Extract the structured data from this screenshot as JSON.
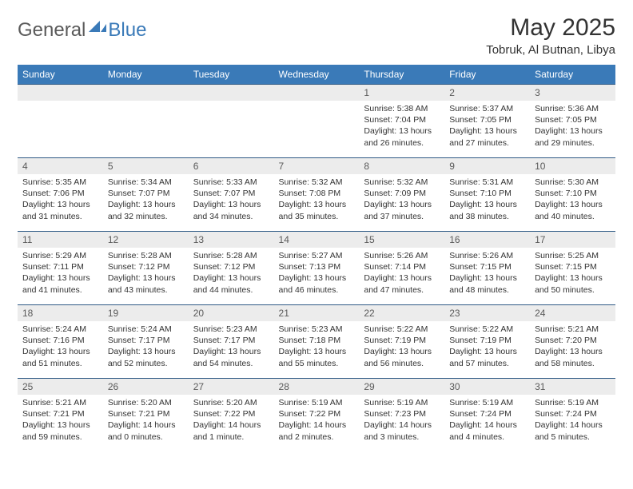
{
  "brand": {
    "part1": "General",
    "part2": "Blue"
  },
  "title": "May 2025",
  "location": "Tobruk, Al Butnan, Libya",
  "colors": {
    "header_bg": "#3a7ab8",
    "header_text": "#ffffff",
    "daynum_bg": "#ececec",
    "row_border": "#2f5a85",
    "text": "#333333"
  },
  "day_names": [
    "Sunday",
    "Monday",
    "Tuesday",
    "Wednesday",
    "Thursday",
    "Friday",
    "Saturday"
  ],
  "weeks": [
    [
      {
        "n": "",
        "sr": "",
        "ss": "",
        "dl": ""
      },
      {
        "n": "",
        "sr": "",
        "ss": "",
        "dl": ""
      },
      {
        "n": "",
        "sr": "",
        "ss": "",
        "dl": ""
      },
      {
        "n": "",
        "sr": "",
        "ss": "",
        "dl": ""
      },
      {
        "n": "1",
        "sr": "Sunrise: 5:38 AM",
        "ss": "Sunset: 7:04 PM",
        "dl": "Daylight: 13 hours and 26 minutes."
      },
      {
        "n": "2",
        "sr": "Sunrise: 5:37 AM",
        "ss": "Sunset: 7:05 PM",
        "dl": "Daylight: 13 hours and 27 minutes."
      },
      {
        "n": "3",
        "sr": "Sunrise: 5:36 AM",
        "ss": "Sunset: 7:05 PM",
        "dl": "Daylight: 13 hours and 29 minutes."
      }
    ],
    [
      {
        "n": "4",
        "sr": "Sunrise: 5:35 AM",
        "ss": "Sunset: 7:06 PM",
        "dl": "Daylight: 13 hours and 31 minutes."
      },
      {
        "n": "5",
        "sr": "Sunrise: 5:34 AM",
        "ss": "Sunset: 7:07 PM",
        "dl": "Daylight: 13 hours and 32 minutes."
      },
      {
        "n": "6",
        "sr": "Sunrise: 5:33 AM",
        "ss": "Sunset: 7:07 PM",
        "dl": "Daylight: 13 hours and 34 minutes."
      },
      {
        "n": "7",
        "sr": "Sunrise: 5:32 AM",
        "ss": "Sunset: 7:08 PM",
        "dl": "Daylight: 13 hours and 35 minutes."
      },
      {
        "n": "8",
        "sr": "Sunrise: 5:32 AM",
        "ss": "Sunset: 7:09 PM",
        "dl": "Daylight: 13 hours and 37 minutes."
      },
      {
        "n": "9",
        "sr": "Sunrise: 5:31 AM",
        "ss": "Sunset: 7:10 PM",
        "dl": "Daylight: 13 hours and 38 minutes."
      },
      {
        "n": "10",
        "sr": "Sunrise: 5:30 AM",
        "ss": "Sunset: 7:10 PM",
        "dl": "Daylight: 13 hours and 40 minutes."
      }
    ],
    [
      {
        "n": "11",
        "sr": "Sunrise: 5:29 AM",
        "ss": "Sunset: 7:11 PM",
        "dl": "Daylight: 13 hours and 41 minutes."
      },
      {
        "n": "12",
        "sr": "Sunrise: 5:28 AM",
        "ss": "Sunset: 7:12 PM",
        "dl": "Daylight: 13 hours and 43 minutes."
      },
      {
        "n": "13",
        "sr": "Sunrise: 5:28 AM",
        "ss": "Sunset: 7:12 PM",
        "dl": "Daylight: 13 hours and 44 minutes."
      },
      {
        "n": "14",
        "sr": "Sunrise: 5:27 AM",
        "ss": "Sunset: 7:13 PM",
        "dl": "Daylight: 13 hours and 46 minutes."
      },
      {
        "n": "15",
        "sr": "Sunrise: 5:26 AM",
        "ss": "Sunset: 7:14 PM",
        "dl": "Daylight: 13 hours and 47 minutes."
      },
      {
        "n": "16",
        "sr": "Sunrise: 5:26 AM",
        "ss": "Sunset: 7:15 PM",
        "dl": "Daylight: 13 hours and 48 minutes."
      },
      {
        "n": "17",
        "sr": "Sunrise: 5:25 AM",
        "ss": "Sunset: 7:15 PM",
        "dl": "Daylight: 13 hours and 50 minutes."
      }
    ],
    [
      {
        "n": "18",
        "sr": "Sunrise: 5:24 AM",
        "ss": "Sunset: 7:16 PM",
        "dl": "Daylight: 13 hours and 51 minutes."
      },
      {
        "n": "19",
        "sr": "Sunrise: 5:24 AM",
        "ss": "Sunset: 7:17 PM",
        "dl": "Daylight: 13 hours and 52 minutes."
      },
      {
        "n": "20",
        "sr": "Sunrise: 5:23 AM",
        "ss": "Sunset: 7:17 PM",
        "dl": "Daylight: 13 hours and 54 minutes."
      },
      {
        "n": "21",
        "sr": "Sunrise: 5:23 AM",
        "ss": "Sunset: 7:18 PM",
        "dl": "Daylight: 13 hours and 55 minutes."
      },
      {
        "n": "22",
        "sr": "Sunrise: 5:22 AM",
        "ss": "Sunset: 7:19 PM",
        "dl": "Daylight: 13 hours and 56 minutes."
      },
      {
        "n": "23",
        "sr": "Sunrise: 5:22 AM",
        "ss": "Sunset: 7:19 PM",
        "dl": "Daylight: 13 hours and 57 minutes."
      },
      {
        "n": "24",
        "sr": "Sunrise: 5:21 AM",
        "ss": "Sunset: 7:20 PM",
        "dl": "Daylight: 13 hours and 58 minutes."
      }
    ],
    [
      {
        "n": "25",
        "sr": "Sunrise: 5:21 AM",
        "ss": "Sunset: 7:21 PM",
        "dl": "Daylight: 13 hours and 59 minutes."
      },
      {
        "n": "26",
        "sr": "Sunrise: 5:20 AM",
        "ss": "Sunset: 7:21 PM",
        "dl": "Daylight: 14 hours and 0 minutes."
      },
      {
        "n": "27",
        "sr": "Sunrise: 5:20 AM",
        "ss": "Sunset: 7:22 PM",
        "dl": "Daylight: 14 hours and 1 minute."
      },
      {
        "n": "28",
        "sr": "Sunrise: 5:19 AM",
        "ss": "Sunset: 7:22 PM",
        "dl": "Daylight: 14 hours and 2 minutes."
      },
      {
        "n": "29",
        "sr": "Sunrise: 5:19 AM",
        "ss": "Sunset: 7:23 PM",
        "dl": "Daylight: 14 hours and 3 minutes."
      },
      {
        "n": "30",
        "sr": "Sunrise: 5:19 AM",
        "ss": "Sunset: 7:24 PM",
        "dl": "Daylight: 14 hours and 4 minutes."
      },
      {
        "n": "31",
        "sr": "Sunrise: 5:19 AM",
        "ss": "Sunset: 7:24 PM",
        "dl": "Daylight: 14 hours and 5 minutes."
      }
    ]
  ]
}
